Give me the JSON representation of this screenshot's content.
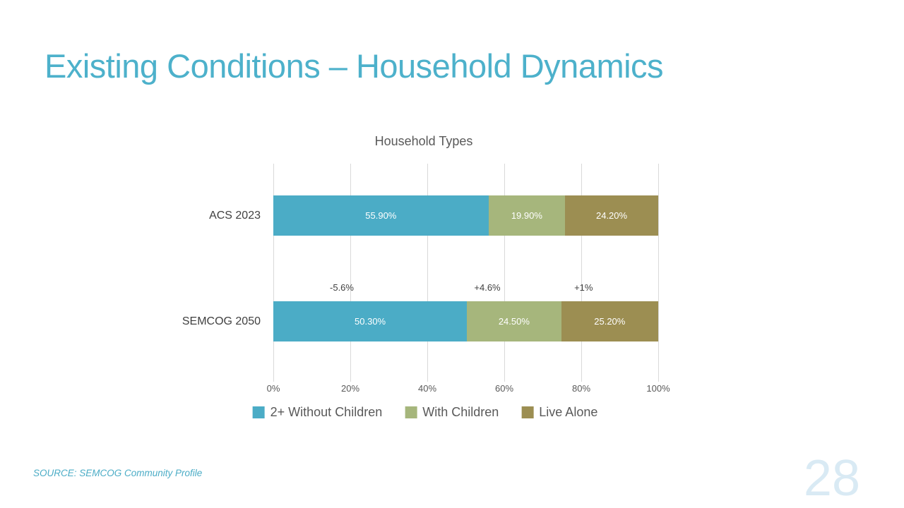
{
  "slide": {
    "title": "Existing Conditions – Household Dynamics",
    "source_note": "SOURCE: SEMCOG Community Profile",
    "page_number": "28"
  },
  "colors": {
    "title_teal": "#4DB1CB",
    "source_teal": "#4BACC6",
    "page_number": "#D9EAF4",
    "chart_title_text": "#595959",
    "axis_text": "#595959",
    "category_text": "#404040",
    "delta_text": "#404040",
    "legend_text": "#595959",
    "bar_value_text": "#FFFFFF",
    "gridline": "#D9D9D9",
    "series_teal": "#4BACC6",
    "series_green": "#A6B67C",
    "series_olive": "#9C8E52"
  },
  "chart_data": {
    "type": "bar",
    "orientation": "horizontal",
    "stacked": true,
    "grid": true,
    "legend_position": "bottom",
    "title": "Household Types",
    "xlabel": "",
    "ylabel": "",
    "xlim": [
      0,
      100
    ],
    "x_ticks": [
      "0%",
      "20%",
      "40%",
      "60%",
      "80%",
      "100%"
    ],
    "categories": [
      "ACS 2023",
      "SEMCOG 2050"
    ],
    "series": [
      {
        "name": "2+ Without Children",
        "color": "#4BACC6",
        "values": [
          55.9,
          50.3
        ],
        "labels": [
          "55.90%",
          "50.30%"
        ]
      },
      {
        "name": "With Children",
        "color": "#A6B67C",
        "values": [
          19.9,
          24.5
        ],
        "labels": [
          "19.90%",
          "24.50%"
        ]
      },
      {
        "name": "Live Alone",
        "color": "#9C8E52",
        "values": [
          24.2,
          25.2
        ],
        "labels": [
          "24.20%",
          "25.20%"
        ]
      }
    ],
    "delta_labels": [
      {
        "text": "-5.6%",
        "x_pct": 17.8
      },
      {
        "text": "+4.6%",
        "x_pct": 55.6
      },
      {
        "text": "+1%",
        "x_pct": 80.6
      }
    ]
  }
}
